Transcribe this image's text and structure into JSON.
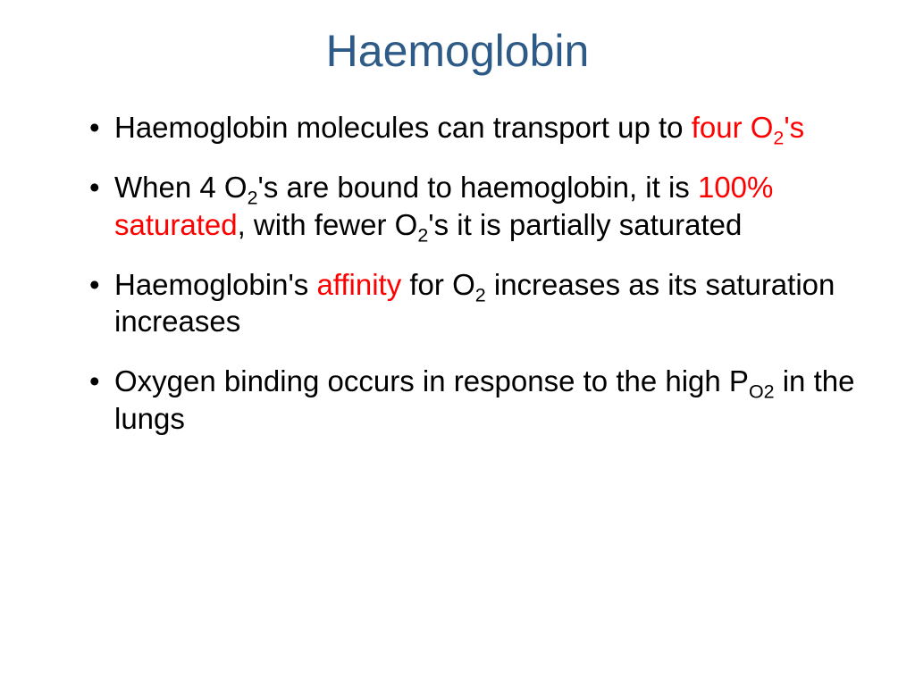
{
  "title": {
    "text": "Haemoglobin",
    "color": "#2d5a87"
  },
  "highlight_color": "#ff0000",
  "body_color": "#000000",
  "bullets": [
    {
      "runs": [
        {
          "t": "Haemoglobin molecules can transport up to "
        },
        {
          "t": "four O",
          "hl": true
        },
        {
          "t": "2",
          "hl": true,
          "sub": true
        },
        {
          "t": "'s",
          "hl": true
        }
      ]
    },
    {
      "runs": [
        {
          "t": "When 4 O"
        },
        {
          "t": "2",
          "sub": true
        },
        {
          "t": "'s are bound to haemoglobin, it is "
        },
        {
          "t": "100% saturated",
          "hl": true
        },
        {
          "t": ", with fewer O"
        },
        {
          "t": "2",
          "sub": true
        },
        {
          "t": "'s it is partially saturated"
        }
      ]
    },
    {
      "runs": [
        {
          "t": "Haemoglobin's "
        },
        {
          "t": "affinity",
          "hl": true
        },
        {
          "t": " for O"
        },
        {
          "t": "2",
          "sub": true
        },
        {
          "t": " increases as its saturation increases"
        }
      ]
    },
    {
      "runs": [
        {
          "t": " Oxygen binding occurs in response to the high P"
        },
        {
          "t": "O2",
          "sub": true
        },
        {
          "t": " in the lungs"
        }
      ]
    }
  ]
}
